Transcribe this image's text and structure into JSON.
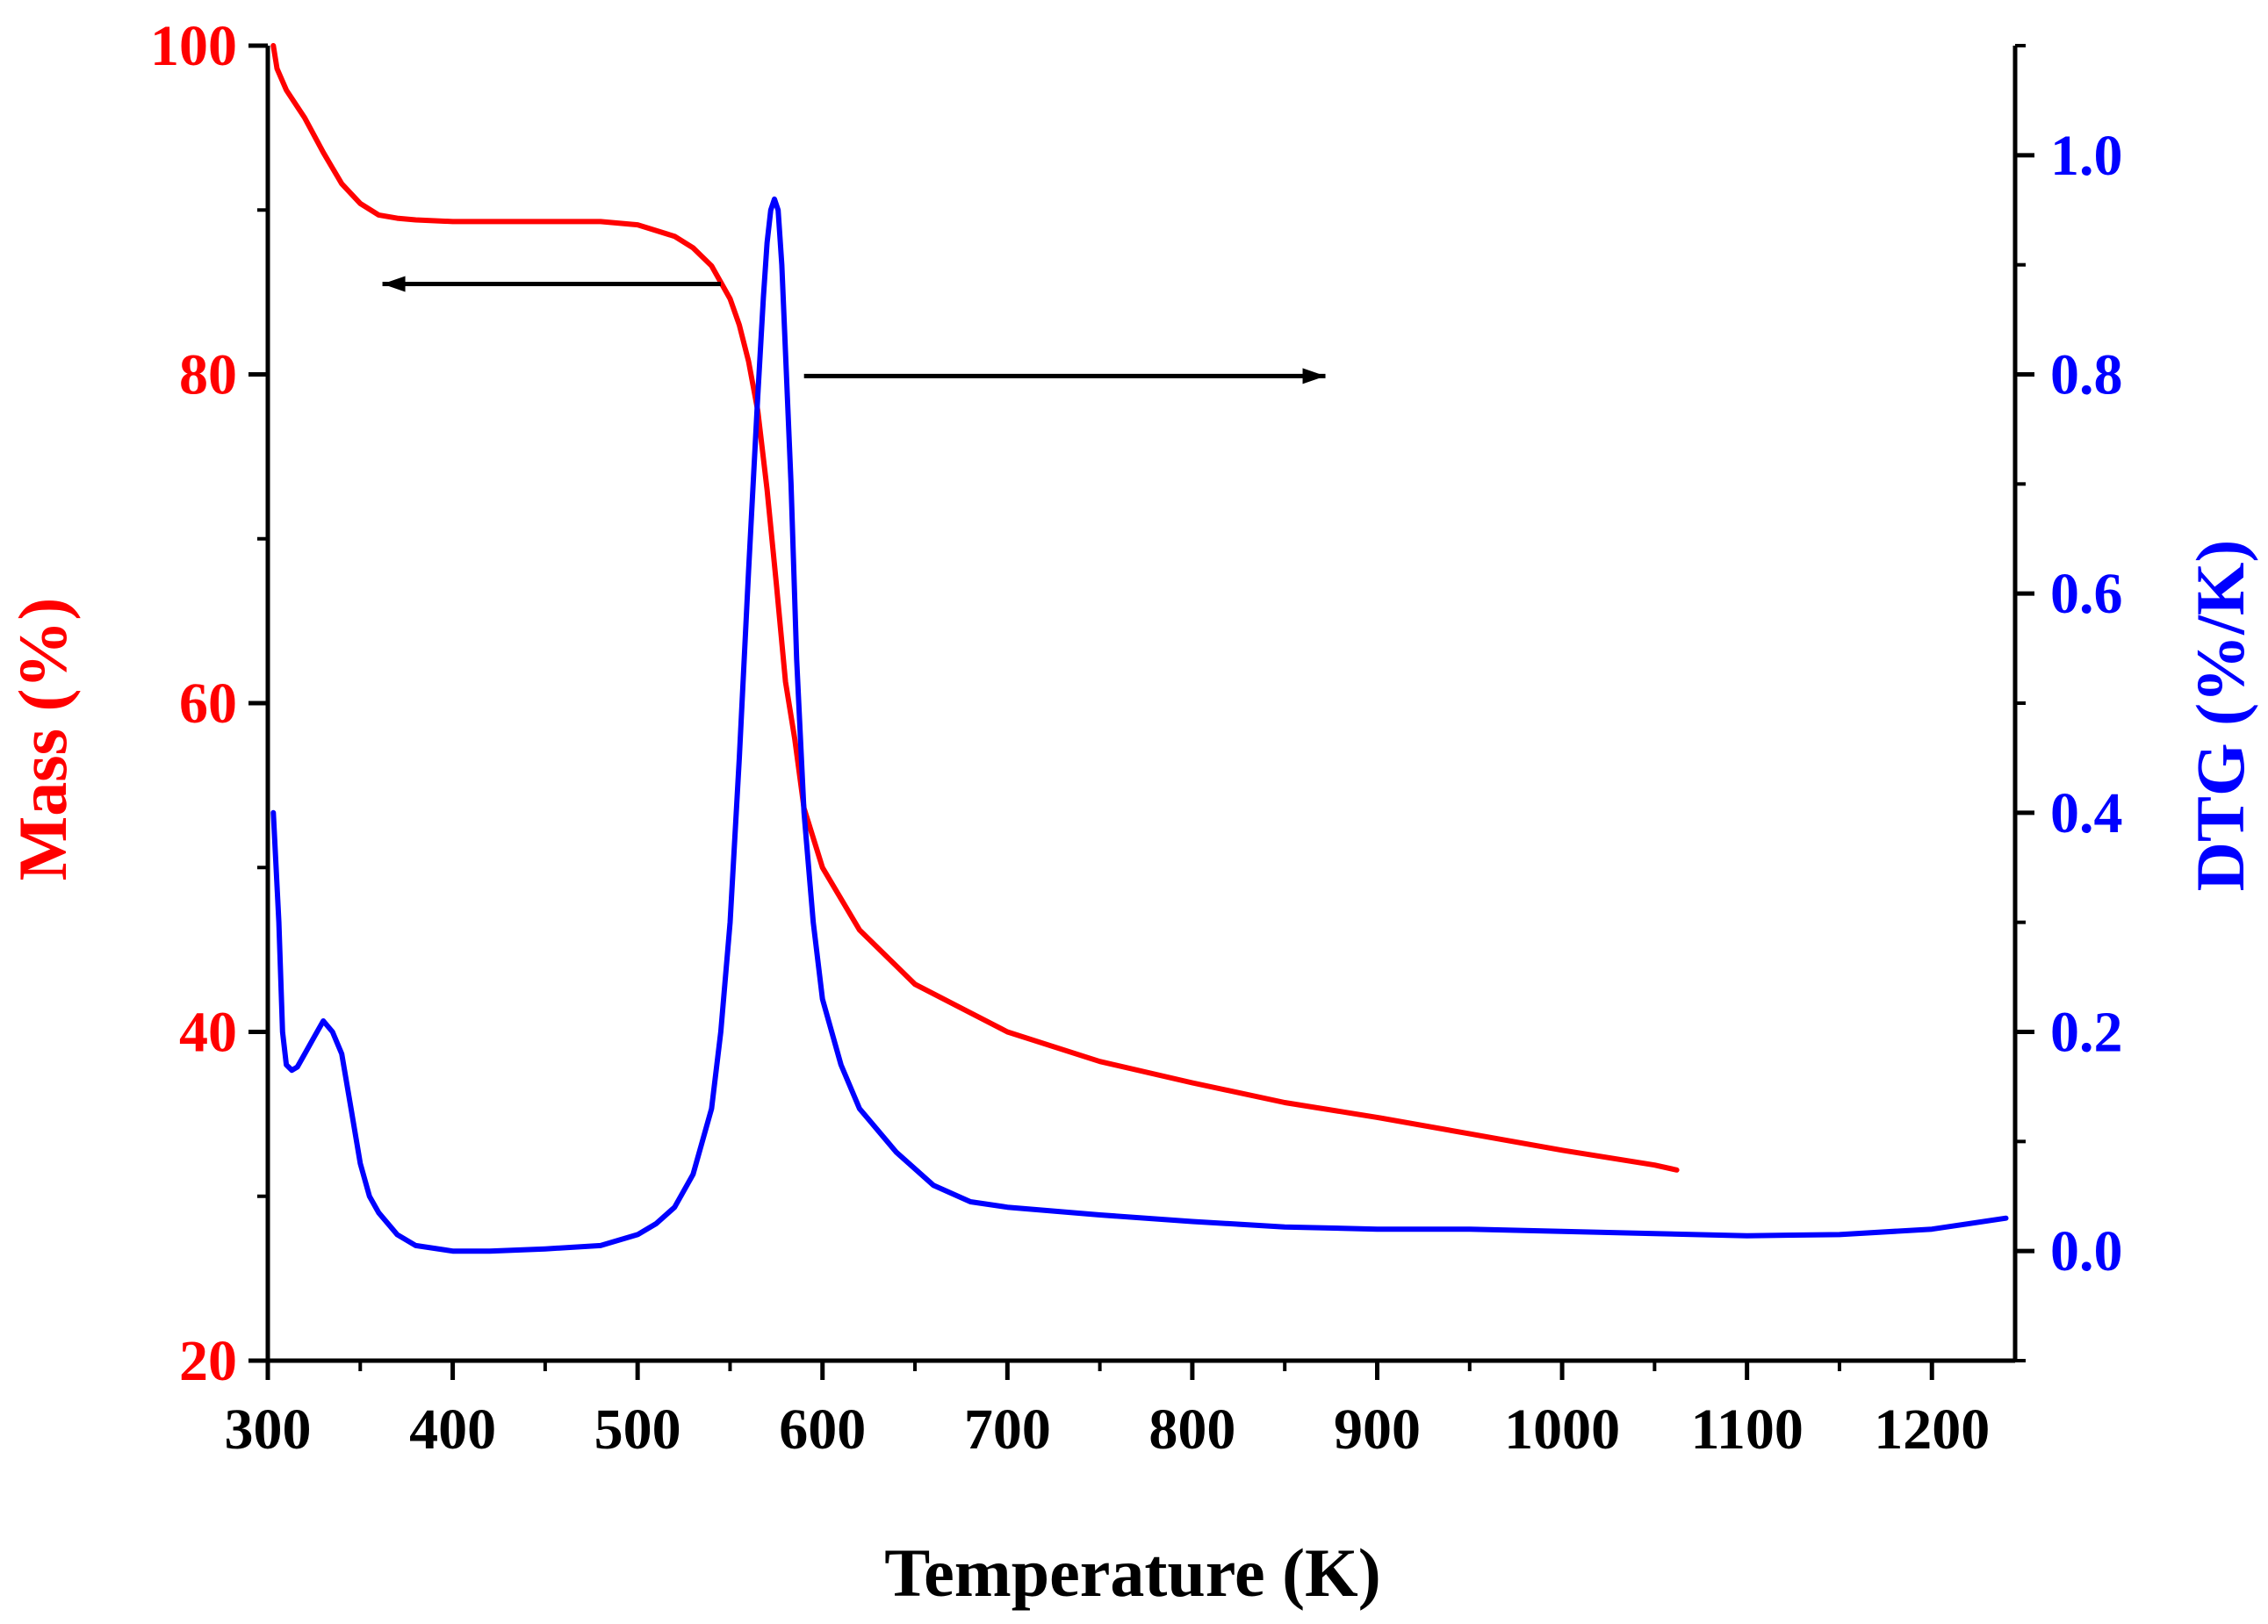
{
  "chart_data": {
    "type": "line",
    "title": "",
    "xlabel": "Temperature (K)",
    "ylabel_left": "Mass (%)",
    "ylabel_right": "DTG (%/K)",
    "xlim": [
      300,
      1245
    ],
    "ylim_left": [
      20,
      100
    ],
    "ylim_right": [
      -0.1,
      1.1
    ],
    "x_ticks": [
      300,
      400,
      500,
      600,
      700,
      800,
      900,
      1000,
      1100,
      1200
    ],
    "y_left_ticks": [
      20,
      40,
      60,
      80,
      100
    ],
    "y_right_ticks": [
      "0.0",
      "0.2",
      "0.4",
      "0.6",
      "0.8",
      "1.0"
    ],
    "grid": false,
    "colors": {
      "mass": "#ff0000",
      "dtg": "#0000ff",
      "axes": "#000000",
      "arrows": "#000000"
    },
    "series": [
      {
        "name": "Mass",
        "axis": "left",
        "color": "#ff0000",
        "x": [
          303,
          305,
          310,
          320,
          330,
          340,
          350,
          360,
          370,
          380,
          400,
          450,
          480,
          500,
          520,
          530,
          540,
          550,
          555,
          560,
          565,
          570,
          575,
          580,
          585,
          590,
          600,
          620,
          650,
          700,
          750,
          800,
          850,
          900,
          950,
          1000,
          1050,
          1062
        ],
        "y": [
          100,
          98.6,
          97.3,
          95.6,
          93.5,
          91.6,
          90.4,
          89.7,
          89.5,
          89.4,
          89.3,
          89.3,
          89.3,
          89.1,
          88.4,
          87.7,
          86.6,
          84.6,
          83.0,
          80.8,
          77.8,
          73.0,
          67.3,
          61.3,
          57.8,
          53.6,
          50.0,
          46.2,
          42.9,
          40.0,
          38.2,
          36.9,
          35.7,
          34.8,
          33.8,
          32.8,
          31.9,
          31.6
        ]
      },
      {
        "name": "DTG",
        "axis": "right",
        "color": "#0000ff",
        "x": [
          303,
          306,
          308,
          310,
          313,
          316,
          320,
          325,
          330,
          335,
          340,
          345,
          350,
          355,
          360,
          370,
          380,
          400,
          420,
          450,
          480,
          500,
          510,
          520,
          530,
          540,
          545,
          550,
          555,
          560,
          565,
          568,
          570,
          572,
          574,
          576,
          578,
          580,
          583,
          586,
          590,
          595,
          600,
          610,
          620,
          640,
          660,
          680,
          700,
          750,
          800,
          850,
          900,
          950,
          1000,
          1050,
          1100,
          1150,
          1200,
          1240
        ],
        "y": [
          0.4,
          0.3,
          0.2,
          0.17,
          0.165,
          0.168,
          0.18,
          0.195,
          0.21,
          0.2,
          0.18,
          0.13,
          0.08,
          0.05,
          0.035,
          0.015,
          0.005,
          0.0,
          0.0,
          0.002,
          0.005,
          0.015,
          0.025,
          0.04,
          0.07,
          0.13,
          0.2,
          0.3,
          0.45,
          0.62,
          0.78,
          0.87,
          0.92,
          0.95,
          0.96,
          0.95,
          0.9,
          0.82,
          0.7,
          0.54,
          0.4,
          0.3,
          0.23,
          0.17,
          0.13,
          0.09,
          0.06,
          0.045,
          0.04,
          0.033,
          0.027,
          0.022,
          0.02,
          0.02,
          0.018,
          0.016,
          0.014,
          0.015,
          0.02,
          0.03
        ]
      }
    ],
    "annotations": [
      {
        "label": "arrow-to-mass-axis",
        "direction": "left",
        "x_from": 545,
        "x_to": 362,
        "y_left": 85.5
      },
      {
        "label": "arrow-to-dtg-axis",
        "direction": "right",
        "x_from": 590,
        "x_to": 872,
        "y_left": 79.9
      }
    ]
  }
}
